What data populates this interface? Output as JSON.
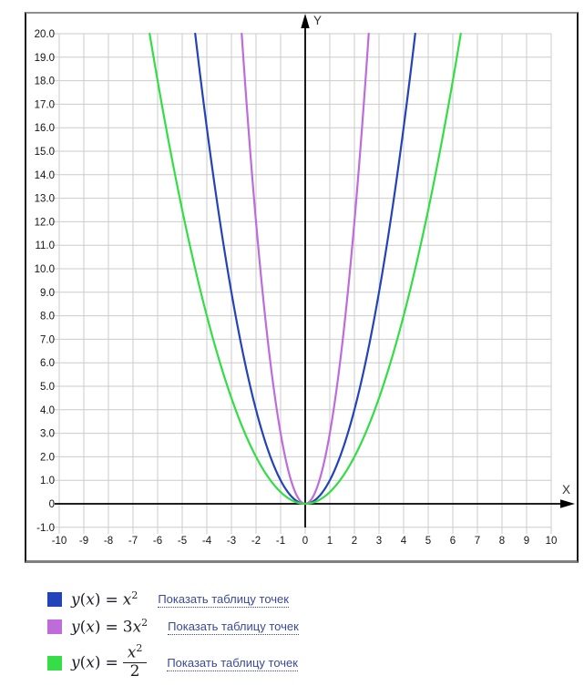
{
  "axes": {
    "x_label": "X",
    "y_label": "Y",
    "x_ticks": [
      "-10",
      "-9",
      "-8",
      "-7",
      "-6",
      "-5",
      "-4",
      "-3",
      "-2",
      "-1",
      "0",
      "1",
      "2",
      "3",
      "4",
      "5",
      "6",
      "7",
      "8",
      "9",
      "10"
    ],
    "y_ticks": [
      "20.0",
      "19.0",
      "18.0",
      "17.0",
      "16.0",
      "15.0",
      "14.0",
      "13.0",
      "12.0",
      "11.0",
      "10.0",
      "9.0",
      "8.0",
      "7.0",
      "6.0",
      "5.0",
      "4.0",
      "3.0",
      "2.0",
      "1.0",
      "0",
      "-1.0"
    ]
  },
  "chart_data": {
    "type": "line",
    "title": "",
    "xlabel": "X",
    "ylabel": "Y",
    "xlim": [
      -10,
      10
    ],
    "ylim": [
      -1,
      20
    ],
    "grid": true,
    "legend_position": "below",
    "series": [
      {
        "name": "y(x) = x^2",
        "expression": "x^2",
        "coefficient": 1,
        "color": "#2343b8",
        "sample_points": {
          "x": [
            -4,
            -3,
            -2,
            -1,
            0,
            1,
            2,
            3,
            4
          ],
          "y": [
            16,
            9,
            4,
            1,
            0,
            1,
            4,
            9,
            16
          ]
        }
      },
      {
        "name": "y(x) = 3x^2",
        "expression": "3x^2",
        "coefficient": 3,
        "color": "#bd6cda",
        "sample_points": {
          "x": [
            -2,
            -1,
            0,
            1,
            2
          ],
          "y": [
            12,
            3,
            0,
            3,
            12
          ]
        }
      },
      {
        "name": "y(x) = x^2/2",
        "expression": "x^2/2",
        "coefficient": 0.5,
        "color": "#33dd44",
        "sample_points": {
          "x": [
            -6,
            -4,
            -2,
            0,
            2,
            4,
            6
          ],
          "y": [
            18,
            8,
            2,
            0,
            2,
            8,
            18
          ]
        }
      }
    ]
  },
  "grid_color": "#cbcbcb",
  "axis_color": "#000000",
  "tick_label_color": "#141414",
  "axis_label_color": "#333333",
  "legend": {
    "rows": [
      {
        "swatch_color": "#2343bb",
        "f_y": "y",
        "f_open": "(",
        "f_x": "x",
        "f_close": ")",
        "f_eq": "=",
        "f_coeff": "",
        "f_base": "x",
        "f_sup": "2",
        "link_label": "Показать таблицу точек"
      },
      {
        "swatch_color": "#bd6cda",
        "f_y": "y",
        "f_open": "(",
        "f_x": "x",
        "f_close": ")",
        "f_eq": "=",
        "f_coeff": "3",
        "f_base": "x",
        "f_sup": "2",
        "link_label": "Показать таблицу точек"
      },
      {
        "swatch_color": "#35dd47",
        "f_y": "y",
        "f_open": "(",
        "f_x": "x",
        "f_close": ")",
        "f_eq": "=",
        "frac_num_base": "x",
        "frac_num_sup": "2",
        "frac_den": "2",
        "link_label": "Показать таблицу точек"
      }
    ]
  }
}
